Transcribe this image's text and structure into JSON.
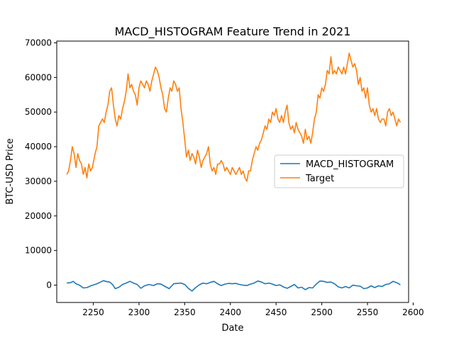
{
  "chart_data": {
    "type": "line",
    "title": "MACD_HISTOGRAM Feature Trend in 2021",
    "xlabel": "Date",
    "ylabel": "BTC-USD Price",
    "xlim": [
      2210,
      2595
    ],
    "ylim": [
      -5000,
      70500
    ],
    "xticks": [
      2250,
      2300,
      2350,
      2400,
      2450,
      2500,
      2550,
      2600
    ],
    "yticks": [
      0,
      10000,
      20000,
      30000,
      40000,
      50000,
      60000,
      70000
    ],
    "legend_loc": "center right",
    "grid": false,
    "series": [
      {
        "name": "MACD_HISTOGRAM",
        "color": "#1f77b4",
        "points": [
          [
            2221,
            600
          ],
          [
            2225,
            700
          ],
          [
            2228,
            1100
          ],
          [
            2231,
            400
          ],
          [
            2235,
            0
          ],
          [
            2239,
            -800
          ],
          [
            2243,
            -700
          ],
          [
            2248,
            -100
          ],
          [
            2253,
            300
          ],
          [
            2258,
            900
          ],
          [
            2261,
            1300
          ],
          [
            2265,
            1000
          ],
          [
            2268,
            900
          ],
          [
            2271,
            200
          ],
          [
            2274,
            -1000
          ],
          [
            2278,
            -600
          ],
          [
            2282,
            200
          ],
          [
            2286,
            600
          ],
          [
            2290,
            1100
          ],
          [
            2294,
            600
          ],
          [
            2298,
            200
          ],
          [
            2302,
            -900
          ],
          [
            2306,
            -200
          ],
          [
            2311,
            200
          ],
          [
            2316,
            -100
          ],
          [
            2320,
            400
          ],
          [
            2324,
            300
          ],
          [
            2328,
            -300
          ],
          [
            2333,
            -1000
          ],
          [
            2338,
            400
          ],
          [
            2342,
            500
          ],
          [
            2346,
            600
          ],
          [
            2350,
            200
          ],
          [
            2354,
            -900
          ],
          [
            2358,
            -1700
          ],
          [
            2362,
            -700
          ],
          [
            2366,
            100
          ],
          [
            2370,
            600
          ],
          [
            2374,
            400
          ],
          [
            2378,
            800
          ],
          [
            2382,
            1100
          ],
          [
            2386,
            400
          ],
          [
            2390,
            -100
          ],
          [
            2394,
            300
          ],
          [
            2398,
            500
          ],
          [
            2402,
            400
          ],
          [
            2406,
            500
          ],
          [
            2410,
            200
          ],
          [
            2414,
            0
          ],
          [
            2418,
            -100
          ],
          [
            2422,
            300
          ],
          [
            2426,
            600
          ],
          [
            2430,
            1200
          ],
          [
            2434,
            900
          ],
          [
            2438,
            400
          ],
          [
            2442,
            600
          ],
          [
            2446,
            300
          ],
          [
            2450,
            -100
          ],
          [
            2454,
            100
          ],
          [
            2458,
            -500
          ],
          [
            2462,
            -900
          ],
          [
            2466,
            -400
          ],
          [
            2470,
            200
          ],
          [
            2474,
            -800
          ],
          [
            2478,
            -600
          ],
          [
            2482,
            -1300
          ],
          [
            2486,
            -700
          ],
          [
            2490,
            -800
          ],
          [
            2494,
            300
          ],
          [
            2498,
            1200
          ],
          [
            2502,
            1100
          ],
          [
            2506,
            800
          ],
          [
            2510,
            900
          ],
          [
            2514,
            400
          ],
          [
            2518,
            -500
          ],
          [
            2522,
            -800
          ],
          [
            2526,
            -400
          ],
          [
            2530,
            -800
          ],
          [
            2534,
            0
          ],
          [
            2538,
            -200
          ],
          [
            2542,
            -300
          ],
          [
            2546,
            -1000
          ],
          [
            2550,
            -800
          ],
          [
            2554,
            -200
          ],
          [
            2558,
            -700
          ],
          [
            2562,
            -200
          ],
          [
            2566,
            -400
          ],
          [
            2570,
            200
          ],
          [
            2574,
            400
          ],
          [
            2578,
            1100
          ],
          [
            2582,
            700
          ],
          [
            2586,
            100
          ]
        ]
      },
      {
        "name": "Target",
        "color": "#ff7f0e",
        "points": [
          [
            2221,
            32000
          ],
          [
            2223,
            33000
          ],
          [
            2225,
            36000
          ],
          [
            2227,
            40000
          ],
          [
            2229,
            38000
          ],
          [
            2231,
            34000
          ],
          [
            2233,
            38000
          ],
          [
            2235,
            36000
          ],
          [
            2237,
            35000
          ],
          [
            2239,
            32000
          ],
          [
            2241,
            34000
          ],
          [
            2243,
            31000
          ],
          [
            2245,
            35000
          ],
          [
            2247,
            33000
          ],
          [
            2249,
            34000
          ],
          [
            2252,
            38000
          ],
          [
            2254,
            40000
          ],
          [
            2256,
            46000
          ],
          [
            2258,
            47000
          ],
          [
            2260,
            48000
          ],
          [
            2262,
            47000
          ],
          [
            2264,
            50000
          ],
          [
            2266,
            52000
          ],
          [
            2268,
            56000
          ],
          [
            2270,
            57000
          ],
          [
            2272,
            52000
          ],
          [
            2274,
            48000
          ],
          [
            2276,
            46000
          ],
          [
            2278,
            49000
          ],
          [
            2280,
            48000
          ],
          [
            2282,
            51000
          ],
          [
            2284,
            53000
          ],
          [
            2286,
            56000
          ],
          [
            2288,
            61000
          ],
          [
            2290,
            57000
          ],
          [
            2292,
            58000
          ],
          [
            2294,
            56000
          ],
          [
            2296,
            55000
          ],
          [
            2298,
            52000
          ],
          [
            2300,
            57000
          ],
          [
            2302,
            59000
          ],
          [
            2304,
            58000
          ],
          [
            2306,
            57000
          ],
          [
            2308,
            59000
          ],
          [
            2310,
            58000
          ],
          [
            2312,
            56000
          ],
          [
            2314,
            59000
          ],
          [
            2316,
            61000
          ],
          [
            2318,
            63000
          ],
          [
            2320,
            62000
          ],
          [
            2322,
            60000
          ],
          [
            2324,
            57000
          ],
          [
            2326,
            55000
          ],
          [
            2328,
            51000
          ],
          [
            2330,
            50000
          ],
          [
            2332,
            54000
          ],
          [
            2334,
            57000
          ],
          [
            2336,
            56000
          ],
          [
            2338,
            59000
          ],
          [
            2340,
            58000
          ],
          [
            2342,
            56000
          ],
          [
            2344,
            57000
          ],
          [
            2346,
            51000
          ],
          [
            2348,
            47000
          ],
          [
            2350,
            42000
          ],
          [
            2352,
            37000
          ],
          [
            2354,
            39000
          ],
          [
            2356,
            36000
          ],
          [
            2358,
            38000
          ],
          [
            2360,
            37000
          ],
          [
            2362,
            35000
          ],
          [
            2364,
            39000
          ],
          [
            2366,
            37000
          ],
          [
            2368,
            34000
          ],
          [
            2370,
            36000
          ],
          [
            2372,
            37000
          ],
          [
            2374,
            38000
          ],
          [
            2376,
            40000
          ],
          [
            2378,
            35000
          ],
          [
            2380,
            33000
          ],
          [
            2382,
            34000
          ],
          [
            2384,
            32000
          ],
          [
            2386,
            35000
          ],
          [
            2388,
            35000
          ],
          [
            2390,
            36000
          ],
          [
            2392,
            35000
          ],
          [
            2394,
            33000
          ],
          [
            2396,
            34000
          ],
          [
            2398,
            33000
          ],
          [
            2400,
            32000
          ],
          [
            2402,
            34000
          ],
          [
            2404,
            33000
          ],
          [
            2406,
            32000
          ],
          [
            2408,
            33000
          ],
          [
            2410,
            34000
          ],
          [
            2412,
            32000
          ],
          [
            2414,
            33000
          ],
          [
            2416,
            31000
          ],
          [
            2418,
            30000
          ],
          [
            2420,
            33000
          ],
          [
            2422,
            33000
          ],
          [
            2424,
            36000
          ],
          [
            2426,
            38000
          ],
          [
            2428,
            40000
          ],
          [
            2430,
            39000
          ],
          [
            2432,
            41000
          ],
          [
            2434,
            42000
          ],
          [
            2436,
            44000
          ],
          [
            2438,
            46000
          ],
          [
            2440,
            45000
          ],
          [
            2442,
            48000
          ],
          [
            2444,
            47000
          ],
          [
            2446,
            50000
          ],
          [
            2448,
            49000
          ],
          [
            2450,
            51000
          ],
          [
            2452,
            48000
          ],
          [
            2454,
            47000
          ],
          [
            2456,
            49000
          ],
          [
            2458,
            47000
          ],
          [
            2460,
            50000
          ],
          [
            2462,
            52000
          ],
          [
            2464,
            47000
          ],
          [
            2466,
            45000
          ],
          [
            2468,
            46000
          ],
          [
            2470,
            44000
          ],
          [
            2472,
            47000
          ],
          [
            2474,
            45000
          ],
          [
            2476,
            44000
          ],
          [
            2478,
            43000
          ],
          [
            2480,
            41000
          ],
          [
            2482,
            45000
          ],
          [
            2484,
            42000
          ],
          [
            2486,
            43000
          ],
          [
            2488,
            41000
          ],
          [
            2490,
            44000
          ],
          [
            2492,
            48000
          ],
          [
            2494,
            50000
          ],
          [
            2496,
            55000
          ],
          [
            2498,
            54000
          ],
          [
            2500,
            57000
          ],
          [
            2502,
            56000
          ],
          [
            2504,
            58000
          ],
          [
            2506,
            62000
          ],
          [
            2508,
            61000
          ],
          [
            2510,
            66000
          ],
          [
            2512,
            61000
          ],
          [
            2514,
            62000
          ],
          [
            2516,
            61000
          ],
          [
            2518,
            63000
          ],
          [
            2520,
            62000
          ],
          [
            2522,
            61000
          ],
          [
            2524,
            63000
          ],
          [
            2526,
            61000
          ],
          [
            2528,
            64000
          ],
          [
            2530,
            67000
          ],
          [
            2532,
            65000
          ],
          [
            2534,
            63000
          ],
          [
            2536,
            64000
          ],
          [
            2538,
            62000
          ],
          [
            2540,
            58000
          ],
          [
            2542,
            60000
          ],
          [
            2544,
            56000
          ],
          [
            2546,
            57000
          ],
          [
            2548,
            54000
          ],
          [
            2550,
            57000
          ],
          [
            2552,
            52000
          ],
          [
            2554,
            50000
          ],
          [
            2556,
            51000
          ],
          [
            2558,
            49000
          ],
          [
            2560,
            51000
          ],
          [
            2562,
            48000
          ],
          [
            2564,
            47000
          ],
          [
            2566,
            48000
          ],
          [
            2568,
            48000
          ],
          [
            2570,
            46000
          ],
          [
            2572,
            50000
          ],
          [
            2574,
            51000
          ],
          [
            2576,
            49000
          ],
          [
            2578,
            50000
          ],
          [
            2580,
            48000
          ],
          [
            2582,
            46000
          ],
          [
            2584,
            48000
          ],
          [
            2586,
            47000
          ]
        ]
      }
    ]
  }
}
